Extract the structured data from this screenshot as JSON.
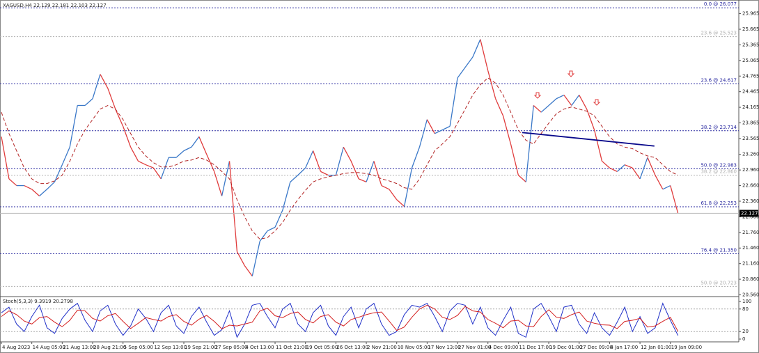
{
  "chart_data": [
    {
      "type": "line",
      "title": "XAGUSD,H4 22.129 22.181 22.103 22.127",
      "xlim": [
        0,
        97
      ],
      "xticks": [
        {
          "value": 0,
          "label": "4 Aug 2023"
        },
        {
          "value": 4,
          "label": "14 Aug 05:00"
        },
        {
          "value": 8,
          "label": "21 Aug 13:00"
        },
        {
          "value": 12,
          "label": "28 Aug 21:00"
        },
        {
          "value": 16,
          "label": "5 Sep 05:00"
        },
        {
          "value": 20,
          "label": "12 Sep 13:00"
        },
        {
          "value": 24,
          "label": "19 Sep 21:00"
        },
        {
          "value": 28,
          "label": "27 Sep 05:00"
        },
        {
          "value": 32,
          "label": "4 Oct 13:00"
        },
        {
          "value": 36,
          "label": "11 Oct 21:00"
        },
        {
          "value": 40,
          "label": "19 Oct 05:00"
        },
        {
          "value": 44,
          "label": "26 Oct 13:00"
        },
        {
          "value": 48,
          "label": "2 Nov 21:00"
        },
        {
          "value": 52,
          "label": "10 Nov 05:00"
        },
        {
          "value": 56,
          "label": "17 Nov 13:00"
        },
        {
          "value": 60,
          "label": "27 Nov 01:00"
        },
        {
          "value": 64,
          "label": "4 Dec 09:00"
        },
        {
          "value": 68,
          "label": "11 Dec 17:00"
        },
        {
          "value": 72,
          "label": "19 Dec 01:00"
        },
        {
          "value": 76,
          "label": "27 Dec 09:00"
        },
        {
          "value": 80,
          "label": "4 Jan 17:00"
        },
        {
          "value": 84,
          "label": "12 Jan 01:00"
        },
        {
          "value": 88,
          "label": "19 Jan 09:00"
        }
      ],
      "ylim": [
        20.54,
        26.16
      ],
      "yticks": [
        25.965,
        25.665,
        25.365,
        25.065,
        24.765,
        24.465,
        24.165,
        23.865,
        23.565,
        {
          "value": 23.26,
          "label": "23.260"
        },
        {
          "value": 22.96,
          "label": "22.960"
        },
        {
          "value": 22.66,
          "label": "22.660"
        },
        {
          "value": 22.36,
          "label": "22.360"
        },
        {
          "value": 22.06,
          "label": "22.060"
        },
        {
          "value": 21.76,
          "label": "21.760"
        },
        {
          "value": 21.46,
          "label": "21.460"
        },
        {
          "value": 21.16,
          "label": "21.160"
        },
        {
          "value": 20.86,
          "label": "20.860"
        },
        {
          "value": 20.56,
          "label": "20.560"
        }
      ],
      "series": [
        {
          "color": "#3a78c8",
          "down_color": "#e03c3c",
          "values": [
            23.6,
            22.79,
            22.66,
            22.66,
            22.59,
            22.46,
            22.59,
            22.73,
            23.06,
            23.4,
            24.2,
            24.2,
            24.33,
            24.8,
            24.53,
            24.13,
            23.8,
            23.4,
            23.13,
            23.06,
            23.0,
            22.79,
            23.2,
            23.2,
            23.33,
            23.4,
            23.6,
            23.26,
            22.93,
            22.46,
            23.13,
            21.39,
            21.12,
            20.92,
            21.59,
            21.79,
            21.86,
            22.19,
            22.73,
            22.86,
            23.0,
            23.33,
            22.93,
            22.86,
            22.86,
            23.4,
            23.13,
            22.79,
            22.73,
            23.13,
            22.66,
            22.59,
            22.39,
            22.26,
            23.0,
            23.4,
            23.93,
            23.66,
            23.73,
            23.8,
            24.73,
            24.93,
            25.13,
            25.47,
            24.87,
            24.33,
            24.0,
            23.46,
            22.86,
            22.73,
            24.2,
            24.07,
            24.2,
            24.33,
            24.4,
            24.2,
            24.4,
            24.13,
            23.73,
            23.13,
            23.0,
            22.93,
            23.06,
            23.0,
            22.79,
            23.2,
            22.86,
            22.59,
            22.66,
            22.127
          ]
        },
        {
          "color": "#b22222",
          "dash": true,
          "values": [
            24.07,
            23.66,
            23.33,
            23.0,
            22.79,
            22.7,
            22.7,
            22.75,
            22.86,
            23.13,
            23.46,
            23.73,
            23.93,
            24.13,
            24.2,
            24.13,
            23.93,
            23.66,
            23.4,
            23.23,
            23.1,
            23.02,
            23.02,
            23.06,
            23.13,
            23.15,
            23.2,
            23.15,
            23.06,
            22.93,
            22.79,
            22.39,
            22.06,
            21.79,
            21.63,
            21.66,
            21.79,
            21.95,
            22.19,
            22.39,
            22.57,
            22.73,
            22.79,
            22.83,
            22.86,
            22.89,
            22.91,
            22.91,
            22.89,
            22.86,
            22.79,
            22.75,
            22.7,
            22.62,
            22.59,
            22.79,
            23.06,
            23.33,
            23.46,
            23.6,
            23.86,
            24.13,
            24.4,
            24.6,
            24.73,
            24.63,
            24.4,
            24.07,
            23.73,
            23.53,
            23.46,
            23.66,
            23.86,
            24.04,
            24.13,
            24.17,
            24.13,
            24.09,
            24.0,
            23.8,
            23.6,
            23.46,
            23.4,
            23.37,
            23.29,
            23.23,
            23.2,
            23.06,
            22.93,
            22.86
          ]
        }
      ],
      "levels": [
        {
          "value": 26.077,
          "label": "0.0 @ 26.077",
          "color": "#2a2aa0"
        },
        {
          "value": 25.523,
          "label": "23.6 @ 25.523",
          "color": "#b0b0b0"
        },
        {
          "value": 24.617,
          "label": "23.6 @ 24.617",
          "color": "#2a2aa0"
        },
        {
          "value": 23.714,
          "label": "38.2 @ 23.714",
          "color": "#2a2aa0"
        },
        {
          "value": 22.983,
          "label": "50.0 @ 22.983",
          "color": "#2a2aa0"
        },
        {
          "value": 22.86,
          "label": "38.2 @ 22.860",
          "color": "#b0b0b0"
        },
        {
          "value": 22.253,
          "label": "61.8 @ 22.253",
          "color": "#2a2aa0"
        },
        {
          "value": 21.35,
          "label": "76.4 @ 21.350",
          "color": "#2a2aa0"
        },
        {
          "value": 20.723,
          "label": "50.0 @ 20.723",
          "color": "#b0b0b0"
        }
      ],
      "trendline": {
        "x": [
          68.5,
          85.9
        ],
        "values": [
          23.68,
          23.42
        ],
        "color": "#0a0a8c"
      },
      "last_price": {
        "value": 22.127,
        "label": "22.127"
      }
    },
    {
      "type": "line",
      "title": "Stoch(5,3,3) 9.3919 20.2798",
      "xlim": [
        0,
        97
      ],
      "ylim": [
        0,
        100
      ],
      "yticks": [
        100,
        80,
        20,
        0
      ],
      "series": [
        {
          "color": "#2030c8",
          "values": [
            70,
            85,
            40,
            20,
            60,
            90,
            30,
            15,
            55,
            80,
            95,
            50,
            20,
            75,
            90,
            40,
            10,
            35,
            80,
            55,
            20,
            70,
            90,
            35,
            15,
            60,
            85,
            45,
            10,
            25,
            75,
            5,
            40,
            90,
            95,
            60,
            30,
            80,
            95,
            40,
            20,
            70,
            90,
            35,
            10,
            60,
            85,
            30,
            80,
            95,
            40,
            10,
            20,
            65,
            90,
            85,
            95,
            60,
            20,
            75,
            95,
            90,
            40,
            85,
            30,
            10,
            50,
            85,
            15,
            5,
            80,
            95,
            60,
            20,
            85,
            90,
            40,
            15,
            70,
            30,
            10,
            45,
            85,
            20,
            60,
            15,
            30,
            95,
            50,
            9.3919
          ]
        },
        {
          "color": "#d42020",
          "values": [
            60,
            75,
            65,
            48,
            40,
            57,
            60,
            45,
            33,
            50,
            77,
            75,
            55,
            48,
            62,
            68,
            47,
            28,
            42,
            57,
            52,
            48,
            60,
            65,
            47,
            37,
            53,
            63,
            47,
            27,
            37,
            35,
            40,
            45,
            75,
            82,
            62,
            57,
            68,
            72,
            52,
            43,
            60,
            65,
            45,
            35,
            52,
            58,
            65,
            70,
            72,
            48,
            23,
            32,
            58,
            80,
            90,
            80,
            58,
            52,
            63,
            87,
            75,
            72,
            52,
            42,
            30,
            48,
            50,
            35,
            33,
            60,
            78,
            58,
            55,
            65,
            72,
            48,
            42,
            38,
            37,
            28,
            47,
            50,
            55,
            32,
            35,
            47,
            58,
            20.2798
          ]
        }
      ]
    }
  ]
}
